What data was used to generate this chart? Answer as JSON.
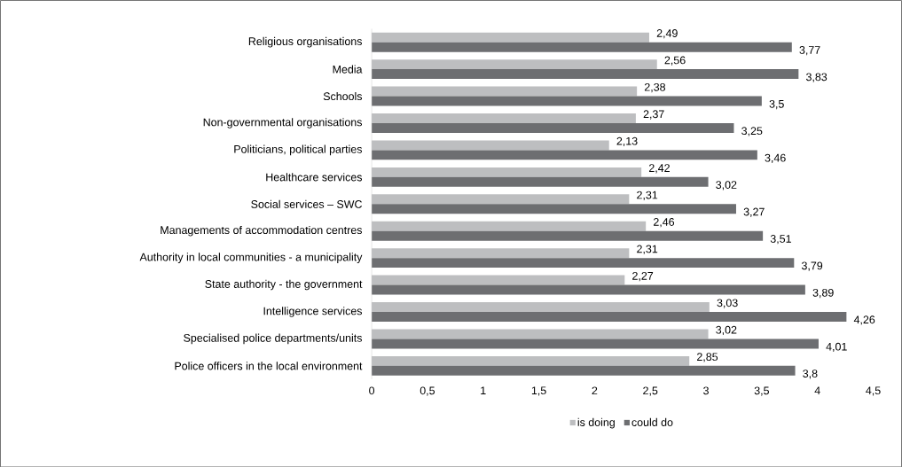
{
  "chart_data": {
    "type": "bar",
    "orientation": "horizontal",
    "categories": [
      "Religious organisations",
      "Media",
      "Schools",
      "Non-governmental organisations",
      "Politicians, political parties",
      "Healthcare services",
      "Social services – SWC",
      "Managements of accommodation centres",
      "Authority in local communities - a municipality",
      "State authority - the government",
      "Intelligence services",
      "Specialised police departments/units",
      "Police officers in the local environment"
    ],
    "series": [
      {
        "name": "is doing",
        "color": "#bdbec0",
        "values": [
          2.49,
          2.56,
          2.38,
          2.37,
          2.13,
          2.42,
          2.31,
          2.46,
          2.31,
          2.27,
          3.03,
          3.02,
          2.85
        ],
        "value_labels": [
          "2,49",
          "2,56",
          "2,38",
          "2,37",
          "2,13",
          "2,42",
          "2,31",
          "2,46",
          "2,31",
          "2,27",
          "3,03",
          "3,02",
          "2,85"
        ]
      },
      {
        "name": "could do",
        "color": "#6d6e71",
        "values": [
          3.77,
          3.83,
          3.5,
          3.25,
          3.46,
          3.02,
          3.27,
          3.51,
          3.79,
          3.89,
          4.26,
          4.01,
          3.8
        ],
        "value_labels": [
          "3,77",
          "3,83",
          "3,5",
          "3,25",
          "3,46",
          "3,02",
          "3,27",
          "3,51",
          "3,79",
          "3,89",
          "4,26",
          "4,01",
          "3,8"
        ]
      }
    ],
    "xlim": [
      0,
      4.5
    ],
    "xticks": [
      0,
      {
        "value": 0.5,
        "label": "0,5"
      },
      1,
      {
        "value": 1.5,
        "label": "1,5"
      },
      2,
      {
        "value": 2.5,
        "label": "2,5"
      },
      3,
      {
        "value": 3.5,
        "label": "3,5"
      },
      4,
      {
        "value": 4.5,
        "label": "4,5"
      }
    ],
    "legend": "bottom"
  }
}
